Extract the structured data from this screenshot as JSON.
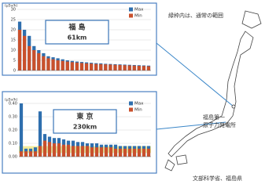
{
  "chart_data": [
    {
      "type": "bar",
      "title": "福 島",
      "subtitle": "61km",
      "y_label": "(μSv/h)",
      "categories": [
        null,
        null,
        null,
        null,
        null,
        null,
        null,
        null,
        null,
        null,
        null,
        null,
        null,
        null,
        null,
        null,
        null,
        null,
        null,
        null,
        null,
        null,
        null,
        null,
        null,
        null,
        null,
        null
      ],
      "series": [
        {
          "name": "Max",
          "color": "#2f6fae",
          "values": [
            24,
            20,
            17,
            12,
            10,
            8.5,
            7,
            6.5,
            6,
            5.5,
            5,
            4.7,
            4.4,
            4.2,
            4,
            3.8,
            3.6,
            3.5,
            3.3,
            3.2,
            3.1,
            3,
            2.9,
            2.8,
            2.7,
            2.6,
            2.5,
            2.4
          ]
        },
        {
          "name": "Min",
          "color": "#c9502c",
          "values": [
            20,
            17,
            12,
            10,
            8.5,
            7,
            6,
            5.5,
            5,
            4.7,
            4.4,
            4.1,
            3.9,
            3.7,
            3.5,
            3.4,
            3.2,
            3.1,
            3,
            2.9,
            2.8,
            2.7,
            2.6,
            2.5,
            2.4,
            2.3,
            2.2,
            2.1
          ]
        }
      ],
      "ylim": [
        0,
        30
      ],
      "yticks": [
        0,
        5,
        10,
        15,
        20,
        25,
        30
      ],
      "grid": true
    },
    {
      "type": "bar",
      "title": "東 京",
      "subtitle": "230km",
      "y_label": "(μSv/h)",
      "categories": [
        null,
        null,
        null,
        null,
        null,
        null,
        null,
        null,
        null,
        null,
        null,
        null,
        null,
        null,
        null,
        null,
        null,
        null,
        null,
        null,
        null,
        null,
        null,
        null,
        null,
        null,
        null,
        null
      ],
      "series": [
        {
          "name": "Max",
          "color": "#2f6fae",
          "values": [
            0.4,
            0.06,
            0.06,
            0.07,
            0.34,
            0.17,
            0.15,
            0.14,
            0.14,
            0.13,
            0.12,
            0.12,
            0.11,
            0.11,
            0.1,
            0.1,
            0.1,
            0.09,
            0.09,
            0.09,
            0.09,
            0.08,
            0.08,
            0.08,
            0.08,
            0.08,
            0.08,
            0.08
          ]
        },
        {
          "name": "Min",
          "color": "#c9502c",
          "values": [
            0.04,
            0.04,
            0.04,
            0.04,
            0.08,
            0.12,
            0.11,
            0.1,
            0.1,
            0.09,
            0.09,
            0.08,
            0.08,
            0.08,
            0.08,
            0.07,
            0.07,
            0.07,
            0.07,
            0.07,
            0.06,
            0.06,
            0.06,
            0.06,
            0.06,
            0.06,
            0.06,
            0.06
          ]
        }
      ],
      "normal_range": [
        0.028,
        0.079
      ],
      "normal_color": "#f3ec9a",
      "ylim": [
        0,
        0.4
      ],
      "yticks": [
        {
          "value": 0,
          "label": "0.00"
        },
        {
          "value": 0.1,
          "label": "0.10"
        },
        {
          "value": 0.2,
          "label": "0.20"
        },
        {
          "value": 0.3,
          "label": "0.30"
        },
        {
          "value": 0.4,
          "label": "0.40"
        }
      ],
      "grid": true
    }
  ],
  "annotations": {
    "note": "緑枠内は、通常の範囲",
    "plant": [
      "福島第一",
      "原子力発電所"
    ],
    "source": "文部科学省、福島県"
  }
}
